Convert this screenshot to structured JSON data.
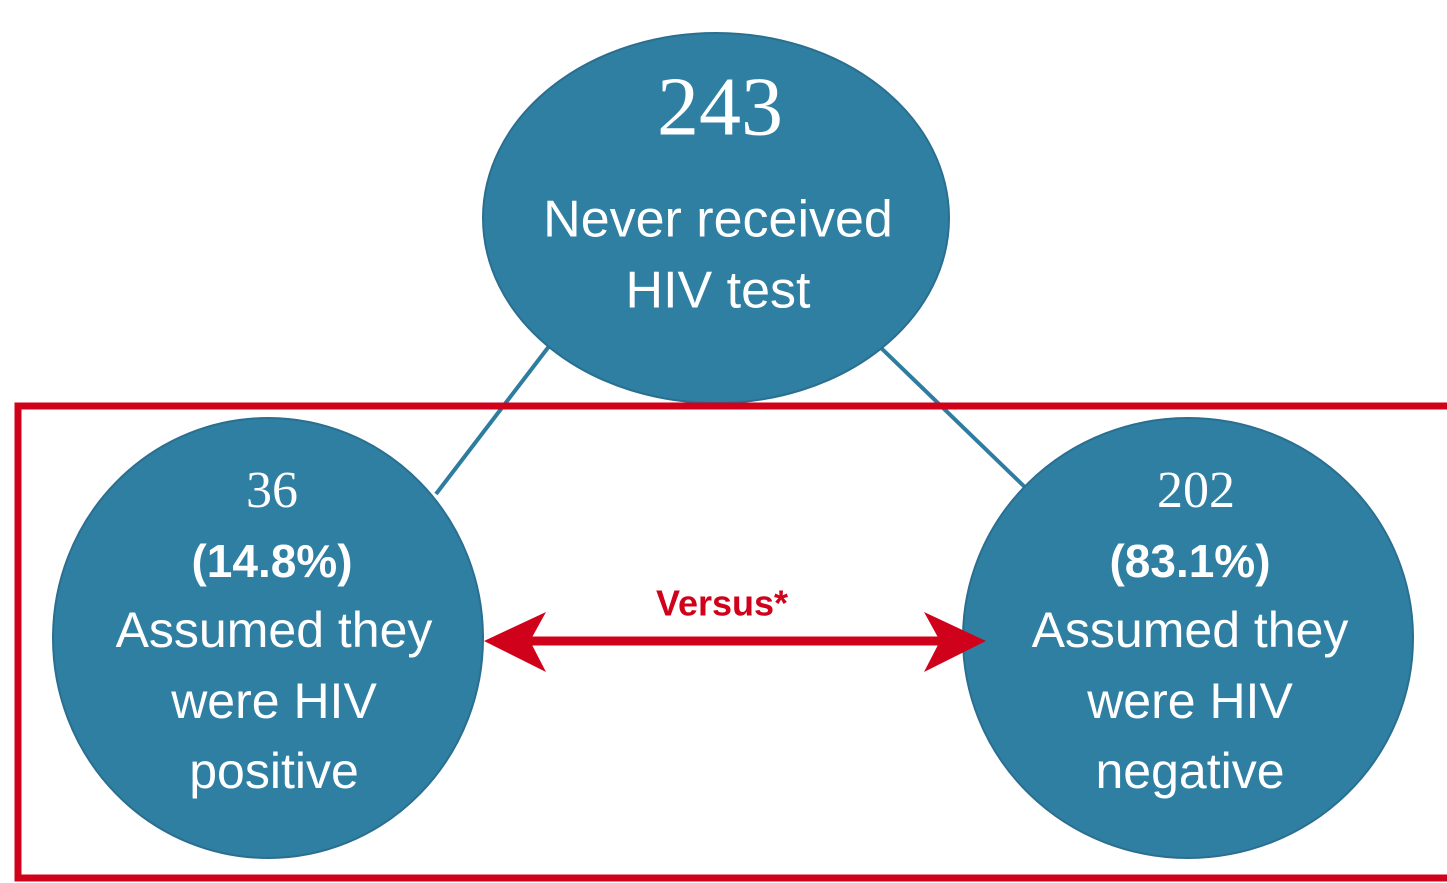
{
  "nodes": [
    {
      "count": "243",
      "label_lines": [
        "Never received",
        "HIV test"
      ]
    },
    {
      "count": "36",
      "percent": "(14.8%)",
      "label_lines": [
        "Assumed they",
        "were HIV",
        "positive"
      ]
    },
    {
      "count": "202",
      "percent": "(83.1%)",
      "label_lines": [
        "Assumed they",
        "were HIV",
        "negative"
      ]
    }
  ],
  "comparison": {
    "label": "Versus*"
  }
}
